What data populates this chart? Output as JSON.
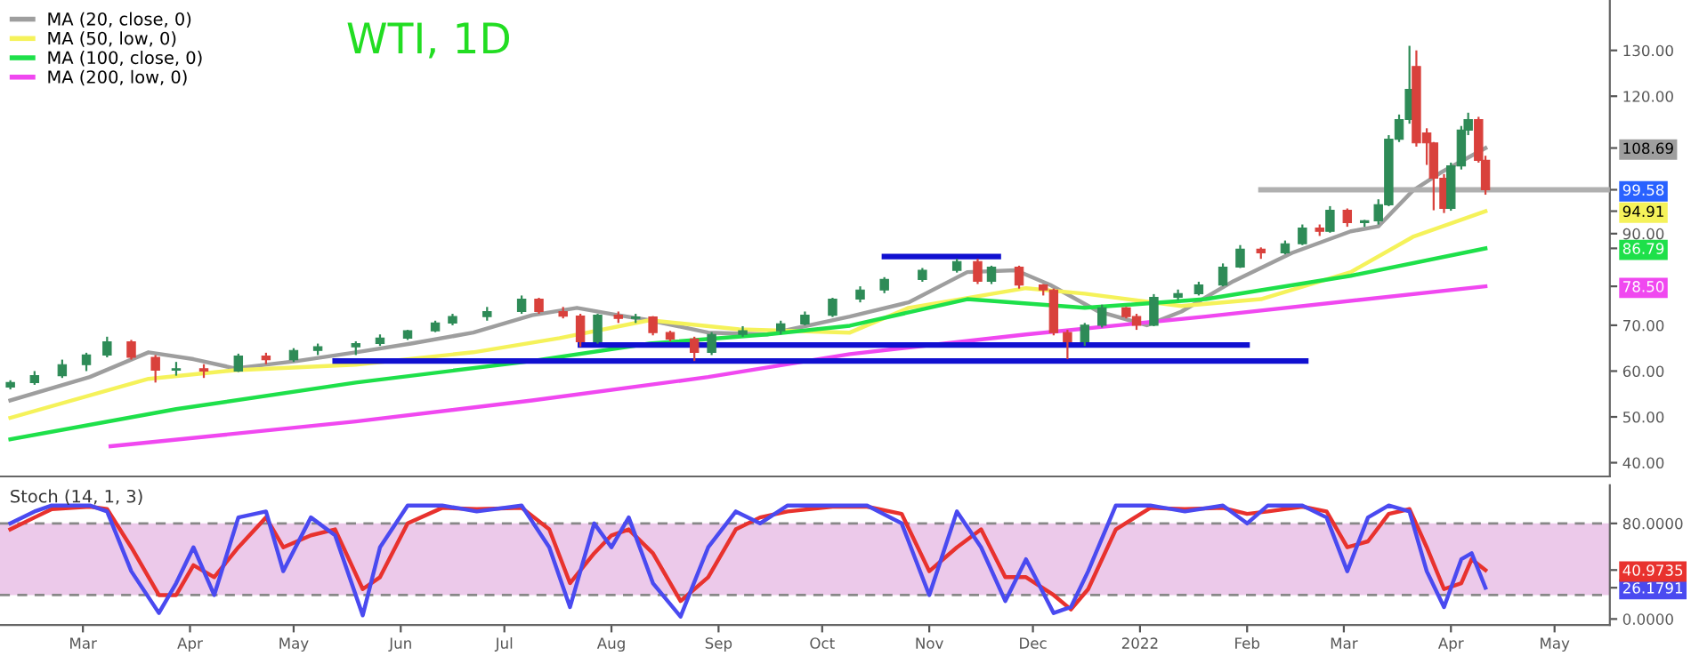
{
  "chart_data": [
    {
      "type": "candlestick",
      "title": "WTI, 1D",
      "x": [
        "2021-02-08",
        "2021-02-15",
        "2021-02-23",
        "2021-03-02",
        "2021-03-08",
        "2021-03-15",
        "2021-03-22",
        "2021-03-28",
        "2021-04-05",
        "2021-04-15",
        "2021-04-23",
        "2021-05-01",
        "2021-05-08",
        "2021-05-19",
        "2021-05-26",
        "2021-06-03",
        "2021-06-11",
        "2021-06-16",
        "2021-06-26",
        "2021-07-06",
        "2021-07-11",
        "2021-07-18",
        "2021-07-23",
        "2021-07-28",
        "2021-08-03",
        "2021-08-08",
        "2021-08-13",
        "2021-08-18",
        "2021-08-25",
        "2021-08-30",
        "2021-09-08",
        "2021-09-19",
        "2021-09-26",
        "2021-10-04",
        "2021-10-12",
        "2021-10-19",
        "2021-10-30",
        "2021-11-09",
        "2021-11-15",
        "2021-11-19",
        "2021-11-27",
        "2021-12-04",
        "2021-12-07",
        "2021-12-11",
        "2021-12-16",
        "2021-12-21",
        "2021-12-28",
        "2021-12-31",
        "2022-01-05",
        "2022-01-12",
        "2022-01-18",
        "2022-01-25",
        "2022-01-30",
        "2022-02-05",
        "2022-02-12",
        "2022-02-17",
        "2022-02-22",
        "2022-02-25",
        "2022-03-02",
        "2022-03-07",
        "2022-03-11",
        "2022-03-14",
        "2022-03-17",
        "2022-03-20",
        "2022-03-22",
        "2022-03-25",
        "2022-03-27",
        "2022-03-30",
        "2022-04-01",
        "2022-04-04",
        "2022-04-06",
        "2022-04-09",
        "2022-04-11"
      ],
      "ohlc": [
        [
          56.5,
          58,
          56,
          57.5
        ],
        [
          57.5,
          60,
          57,
          59
        ],
        [
          59,
          62.5,
          58.5,
          61.4
        ],
        [
          61.4,
          64,
          60,
          63.5
        ],
        [
          63.5,
          67.5,
          63,
          66.4
        ],
        [
          66.4,
          66.8,
          62.5,
          63
        ],
        [
          63,
          63.5,
          57.5,
          60.2
        ],
        [
          60.2,
          62,
          59,
          60.5
        ],
        [
          60.5,
          61.5,
          58.5,
          60
        ],
        [
          60,
          63.8,
          59.8,
          63.3
        ],
        [
          63.3,
          64,
          61.5,
          62.5
        ],
        [
          62.5,
          65,
          62,
          64.5
        ],
        [
          64.5,
          66,
          63.5,
          65.3
        ],
        [
          65.3,
          66.5,
          63.5,
          66
        ],
        [
          66,
          68,
          65.5,
          67.2
        ],
        [
          67.2,
          69,
          66.8,
          68.8
        ],
        [
          68.8,
          71,
          68.5,
          70.5
        ],
        [
          70.5,
          72.5,
          70,
          71.9
        ],
        [
          71.9,
          74,
          71,
          73
        ],
        [
          73,
          76.5,
          72.5,
          75.7
        ],
        [
          75.7,
          76,
          72.5,
          73
        ],
        [
          73,
          74,
          71.5,
          72
        ],
        [
          72,
          72.5,
          65.3,
          66.4
        ],
        [
          66.4,
          72.5,
          66,
          72.2
        ],
        [
          72.2,
          73,
          70.5,
          71.5
        ],
        [
          71.5,
          72.5,
          70.5,
          71.8
        ],
        [
          71.8,
          72,
          67.8,
          68.4
        ],
        [
          68.4,
          68.8,
          66.5,
          67
        ],
        [
          67,
          67.5,
          62.2,
          64.1
        ],
        [
          64.1,
          68.5,
          63.5,
          68
        ],
        [
          68,
          69.8,
          67.5,
          68.8
        ],
        [
          68.8,
          71,
          68,
          70.3
        ],
        [
          70.3,
          73,
          70,
          72.2
        ],
        [
          72.2,
          76,
          71.8,
          75.7
        ],
        [
          75.7,
          78.5,
          75,
          77.7
        ],
        [
          77.7,
          80.5,
          77,
          80
        ],
        [
          80,
          82.5,
          79.5,
          82
        ],
        [
          82,
          84.5,
          81.5,
          83.9
        ],
        [
          83.9,
          84.5,
          79,
          79.6
        ],
        [
          79.6,
          83,
          79,
          82.7
        ],
        [
          82.7,
          83,
          78,
          78.8
        ],
        [
          78.8,
          79,
          76.5,
          77.7
        ],
        [
          77.7,
          78,
          67.8,
          68.4
        ],
        [
          68.4,
          69,
          62.6,
          66.4
        ],
        [
          66.4,
          70.5,
          65.5,
          70
        ],
        [
          70,
          74.5,
          69.5,
          73.8
        ],
        [
          73.8,
          74,
          71.5,
          71.9
        ],
        [
          71.9,
          72.5,
          69,
          70
        ],
        [
          70,
          76.8,
          69.8,
          76.1
        ],
        [
          76.1,
          77.8,
          75.5,
          76.9
        ],
        [
          76.9,
          79.5,
          76.5,
          78.8
        ],
        [
          78.8,
          83.5,
          78.5,
          82.7
        ],
        [
          82.7,
          87.5,
          82.5,
          86.6
        ],
        [
          86.6,
          87,
          84.5,
          85.8
        ],
        [
          85.8,
          88.5,
          85.5,
          87.8
        ],
        [
          87.8,
          92,
          87.5,
          91.2
        ],
        [
          91.2,
          92,
          89.5,
          90.5
        ],
        [
          90.5,
          96,
          90.2,
          95.1
        ],
        [
          95.1,
          95.5,
          91.5,
          92.4
        ],
        [
          92.4,
          93,
          91.5,
          92.8
        ],
        [
          92.8,
          97.5,
          92,
          96.3
        ],
        [
          96.3,
          111.5,
          96,
          110.6
        ],
        [
          110.6,
          116,
          110,
          114.9
        ],
        [
          114.9,
          131,
          114,
          121.5
        ],
        [
          126.5,
          130,
          109,
          109.8
        ],
        [
          112,
          113,
          105,
          109.8
        ],
        [
          109.8,
          110,
          95.1,
          102.1
        ],
        [
          102.1,
          103,
          94.5,
          95.5
        ],
        [
          95.5,
          105.5,
          95,
          104.8
        ],
        [
          104.8,
          113.5,
          104,
          112.6
        ],
        [
          112.6,
          116.4,
          111.5,
          114.9
        ],
        [
          114.9,
          115.5,
          105.5,
          106
        ],
        [
          106,
          107,
          98.5,
          99.58
        ]
      ],
      "series": [
        {
          "type": "line",
          "name": "MA (20, close, 0)",
          "color": "#9e9e9e",
          "x": [
            "2021-02-08",
            "2021-03-03",
            "2021-03-20",
            "2021-04-02",
            "2021-04-14",
            "2021-05-02",
            "2021-05-19",
            "2021-06-04",
            "2021-06-22",
            "2021-07-09",
            "2021-07-22",
            "2021-08-03",
            "2021-08-12",
            "2021-08-29",
            "2021-09-15",
            "2021-10-09",
            "2021-10-26",
            "2021-11-12",
            "2021-11-26",
            "2021-12-06",
            "2021-12-20",
            "2022-01-03",
            "2022-01-13",
            "2022-01-28",
            "2022-02-14",
            "2022-03-03",
            "2022-03-11",
            "2022-03-21",
            "2022-03-29",
            "2022-04-11"
          ],
          "values": [
            53.6,
            58.7,
            64.1,
            62.6,
            60.6,
            62.2,
            64.1,
            66,
            68.4,
            72.2,
            73.8,
            72.2,
            71.1,
            68.4,
            68,
            71.9,
            75,
            81.6,
            82,
            78.8,
            73,
            70,
            73,
            79.6,
            85.8,
            90.5,
            91.6,
            99.4,
            103.3,
            108.69
          ]
        },
        {
          "type": "line",
          "name": "MA (50, low, 0)",
          "color": "#f5f25a",
          "x": [
            "2021-02-08",
            "2021-03-20",
            "2021-04-14",
            "2021-05-19",
            "2021-06-22",
            "2021-07-17",
            "2021-08-12",
            "2021-09-07",
            "2021-10-09",
            "2021-10-26",
            "2021-11-29",
            "2021-12-16",
            "2022-01-13",
            "2022-02-05",
            "2022-03-03",
            "2022-03-21",
            "2022-04-11"
          ],
          "values": [
            49.8,
            58.3,
            60.2,
            61.4,
            64.1,
            67.2,
            71.1,
            69.1,
            68.4,
            73.8,
            78.1,
            76.9,
            74.2,
            75.7,
            81.6,
            89.3,
            94.91
          ]
        },
        {
          "type": "line",
          "name": "MA (100, close, 0)",
          "color": "#1ee04a",
          "x": [
            "2021-02-08",
            "2021-03-28",
            "2021-05-19",
            "2021-07-09",
            "2021-08-12",
            "2021-09-15",
            "2021-10-09",
            "2021-11-12",
            "2021-12-16",
            "2022-01-20",
            "2022-03-03",
            "2022-04-11"
          ],
          "values": [
            45.1,
            51.7,
            57.5,
            62.2,
            66,
            68,
            69.9,
            75.7,
            73.8,
            75.7,
            80.8,
            86.79
          ]
        },
        {
          "type": "line",
          "name": "MA (200, low, 0)",
          "color": "#f048f0",
          "x": [
            "2021-03-09",
            "2021-05-19",
            "2021-07-09",
            "2021-08-29",
            "2021-10-09",
            "2021-11-29",
            "2022-01-20",
            "2022-04-11"
          ],
          "values": [
            43.6,
            49,
            53.6,
            58.7,
            63.7,
            68,
            71.9,
            78.5
          ]
        },
        {
          "type": "line",
          "color": "#1010d0",
          "x": [
            "2021-10-19",
            "2021-11-21"
          ],
          "values": [
            85.0,
            85.0
          ]
        },
        {
          "type": "line",
          "color": "#1010d0",
          "x": [
            "2021-07-23",
            "2022-02-01"
          ],
          "values": [
            65.7,
            65.7
          ]
        },
        {
          "type": "line",
          "color": "#1010d0",
          "x": [
            "2021-05-13",
            "2022-02-18"
          ],
          "values": [
            62.2,
            62.2
          ]
        },
        {
          "type": "line",
          "color": "#b0b0b0",
          "x": [
            "2022-02-05",
            "2022-05-17"
          ],
          "values": [
            99.58,
            99.58
          ]
        }
      ],
      "xlim": [
        "2021-02-05",
        "2022-05-17"
      ],
      "ylim": [
        37,
        141
      ],
      "yticks": [
        {
          "value": 40,
          "label": "40.00"
        },
        {
          "value": 50,
          "label": "50.00"
        },
        {
          "value": 60,
          "label": "60.00"
        },
        {
          "value": 70,
          "label": "70.00"
        },
        {
          "value": 78.5,
          "label": "78.50"
        },
        {
          "value": 86.79,
          "label": "86.79"
        },
        {
          "value": 90,
          "label": "90.00"
        },
        {
          "value": 94.91,
          "label": "94.91"
        },
        {
          "value": 99.58,
          "label": "99.58"
        },
        {
          "value": 108.69,
          "label": "108.69"
        },
        {
          "value": 120,
          "label": "120.00"
        },
        {
          "value": 130,
          "label": "130.00"
        }
      ],
      "tick_labels": "y",
      "legend": "top left"
    },
    {
      "type": "line",
      "title": "Stoch (14, 1, 3)",
      "x": [
        "2021-02-08",
        "2021-02-15",
        "2021-02-20",
        "2021-03-03",
        "2021-03-08",
        "2021-03-15",
        "2021-03-23",
        "2021-03-28",
        "2021-04-02",
        "2021-04-08",
        "2021-04-15",
        "2021-04-23",
        "2021-04-28",
        "2021-05-06",
        "2021-05-13",
        "2021-05-21",
        "2021-05-26",
        "2021-06-03",
        "2021-06-13",
        "2021-06-23",
        "2021-07-06",
        "2021-07-14",
        "2021-07-20",
        "2021-07-27",
        "2021-08-01",
        "2021-08-06",
        "2021-08-13",
        "2021-08-21",
        "2021-08-29",
        "2021-09-06",
        "2021-09-13",
        "2021-09-21",
        "2021-10-04",
        "2021-10-14",
        "2021-10-24",
        "2021-11-01",
        "2021-11-09",
        "2021-11-16",
        "2021-11-23",
        "2021-11-29",
        "2021-12-07",
        "2021-12-12",
        "2021-12-17",
        "2021-12-25",
        "2022-01-04",
        "2022-01-14",
        "2022-01-25",
        "2022-02-01",
        "2022-02-07",
        "2022-02-17",
        "2022-02-24",
        "2022-03-02",
        "2022-03-08",
        "2022-03-14",
        "2022-03-20",
        "2022-03-25",
        "2022-03-30",
        "2022-04-04",
        "2022-04-07",
        "2022-04-11"
      ],
      "series": [
        {
          "color": "#e8322e",
          "values": [
            75,
            85,
            92,
            94,
            92,
            60,
            20,
            20,
            45,
            35,
            60,
            85,
            60,
            70,
            75,
            25,
            35,
            80,
            93,
            92,
            93,
            75,
            30,
            55,
            70,
            75,
            55,
            15,
            35,
            75,
            85,
            90,
            94,
            94,
            88,
            40,
            60,
            75,
            35,
            35,
            20,
            8,
            25,
            75,
            93,
            92,
            93,
            88,
            90,
            94,
            90,
            60,
            65,
            88,
            92,
            60,
            25,
            30,
            50,
            40.9735
          ]
        },
        {
          "color": "#4a4af0",
          "values": [
            80,
            90,
            95,
            95,
            90,
            40,
            5,
            30,
            60,
            20,
            85,
            90,
            40,
            85,
            70,
            3,
            60,
            95,
            95,
            90,
            95,
            60,
            10,
            80,
            60,
            85,
            30,
            2,
            60,
            90,
            80,
            95,
            95,
            95,
            80,
            20,
            90,
            60,
            15,
            50,
            5,
            10,
            40,
            95,
            95,
            90,
            95,
            80,
            95,
            95,
            85,
            40,
            85,
            95,
            90,
            40,
            10,
            50,
            55,
            26.1791
          ]
        }
      ],
      "xlim": [
        "2021-02-05",
        "2022-05-17"
      ],
      "ylim": [
        -5,
        112
      ],
      "xticks": [
        {
          "value": "2021-03-01",
          "label": "Mar"
        },
        {
          "value": "2021-04-01",
          "label": "Apr"
        },
        {
          "value": "2021-05-01",
          "label": "May"
        },
        {
          "value": "2021-06-01",
          "label": "Jun"
        },
        {
          "value": "2021-07-01",
          "label": "Jul"
        },
        {
          "value": "2021-08-01",
          "label": "Aug"
        },
        {
          "value": "2021-09-01",
          "label": "Sep"
        },
        {
          "value": "2021-10-01",
          "label": "Oct"
        },
        {
          "value": "2021-11-01",
          "label": "Nov"
        },
        {
          "value": "2021-12-01",
          "label": "Dec"
        },
        {
          "value": "2022-01-01",
          "label": "2022"
        },
        {
          "value": "2022-02-01",
          "label": "Feb"
        },
        {
          "value": "2022-03-01",
          "label": "Mar"
        },
        {
          "value": "2022-04-01",
          "label": "Apr"
        },
        {
          "value": "2022-05-01",
          "label": "May"
        }
      ],
      "yticks": [
        {
          "value": 0,
          "label": "0.0000"
        },
        {
          "value": 26.1791,
          "label": "26.1791"
        },
        {
          "value": 40.9735,
          "label": "40.9735"
        },
        {
          "value": 80,
          "label": "80.0000"
        }
      ],
      "ref_lines": [
        {
          "axis": "y",
          "value": 80,
          "color": "#888888",
          "line_style": "dashed"
        },
        {
          "axis": "y",
          "value": 20,
          "color": "#888888",
          "line_style": "dashed"
        }
      ],
      "bands": [
        {
          "axis": "y",
          "from": 20,
          "to": 80,
          "color": "#ecc9ea"
        }
      ]
    }
  ]
}
